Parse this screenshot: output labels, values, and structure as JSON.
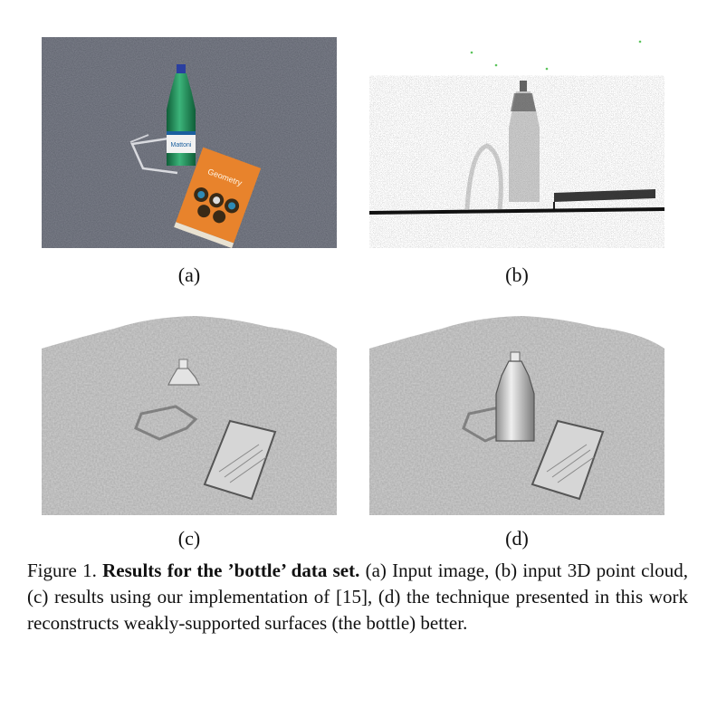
{
  "figure": {
    "panels": [
      {
        "id": "a",
        "label": "(a)",
        "content": "input-photo"
      },
      {
        "id": "b",
        "label": "(b)",
        "content": "point-cloud"
      },
      {
        "id": "c",
        "label": "(c)",
        "content": "reconstruction-baseline"
      },
      {
        "id": "d",
        "label": "(d)",
        "content": "reconstruction-proposed"
      }
    ],
    "book_cover_text": "Geometry",
    "bottle_label_text": "Mattoni",
    "caption": {
      "prefix": "Figure 1. ",
      "title": "Results for the ’bottle’ data set.",
      "body": " (a) Input image, (b) input 3D point cloud, (c) results using our implementation of [15], (d) the technique presented in this work reconstructs weakly-supported surfaces (the bottle) better."
    }
  },
  "colors": {
    "carpet": "#5b5f6a",
    "bottle": "#1f8a55",
    "book_cover": "#e8832c",
    "mesh": "#c9c9c9"
  }
}
